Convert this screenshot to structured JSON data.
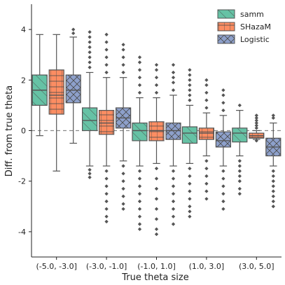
{
  "chart_data": {
    "type": "box",
    "xlabel": "True theta size",
    "ylabel": "Diff. from true theta",
    "categories": [
      "(-5.0, -3.0]",
      "(-3.0, -1.0]",
      "(-1.0, 1.0]",
      "(1.0, 3.0]",
      "(3.0, 5.0]"
    ],
    "ylim": [
      -5,
      5
    ],
    "yticks": [
      -4,
      -2,
      0,
      2,
      4
    ],
    "reference_line": 0,
    "legend": {
      "position": "top-right"
    },
    "colors": {
      "axis": "#222222",
      "median": "#555555",
      "whisker": "#555555",
      "reference": "#8a8a8a"
    },
    "series": [
      {
        "name": "samm",
        "color": "#66c2a5",
        "boxes": [
          {
            "whislo": -0.2,
            "q1": 1.0,
            "med": 1.6,
            "q3": 2.2,
            "whishi": 3.8,
            "outliers_low": [],
            "outliers_high": []
          },
          {
            "whislo": -1.4,
            "q1": 0.0,
            "med": 0.4,
            "q3": 0.9,
            "whishi": 2.3,
            "outliers_low": [
              -1.55,
              -1.7,
              -1.85
            ],
            "outliers_high": [
              2.5,
              2.7,
              2.9,
              3.1,
              3.3,
              3.5,
              3.7,
              3.9
            ]
          },
          {
            "whislo": -1.4,
            "q1": -0.4,
            "med": 0.0,
            "q3": 0.3,
            "whishi": 1.3,
            "outliers_low": [
              -1.6,
              -1.9,
              -2.2,
              -2.5,
              -2.8,
              -3.1,
              -3.4,
              -3.7,
              -3.9
            ],
            "outliers_high": [
              1.5,
              1.8,
              2.1,
              2.4,
              2.7,
              2.9
            ]
          },
          {
            "whislo": -1.3,
            "q1": -0.5,
            "med": -0.1,
            "q3": 0.15,
            "whishi": 1.0,
            "outliers_low": [
              -1.5,
              -1.8,
              -2.1,
              -2.4,
              -2.7,
              -3.0,
              -3.2,
              -3.4
            ],
            "outliers_high": [
              1.2,
              1.4,
              1.6,
              1.8,
              2.0,
              2.2,
              2.4
            ]
          },
          {
            "whislo": -1.0,
            "q1": -0.45,
            "med": -0.1,
            "q3": 0.1,
            "whishi": 0.8,
            "outliers_low": [
              -1.2,
              -1.4,
              -1.6,
              -1.8,
              -2.0,
              -2.3,
              -2.5
            ],
            "outliers_high": [
              1.0
            ]
          }
        ]
      },
      {
        "name": "SHazaM",
        "color": "#fc8d62",
        "boxes": [
          {
            "whislo": -1.6,
            "q1": 0.65,
            "med": 1.4,
            "q3": 2.4,
            "whishi": 3.8,
            "outliers_low": [],
            "outliers_high": []
          },
          {
            "whislo": -1.4,
            "q1": -0.15,
            "med": 0.3,
            "q3": 0.8,
            "whishi": 2.1,
            "outliers_low": [
              -1.6,
              -1.9,
              -2.2,
              -2.5,
              -2.8,
              -3.1,
              -3.4,
              -3.6
            ],
            "outliers_high": [
              2.3,
              2.6,
              2.9,
              3.2,
              3.5,
              3.8
            ]
          },
          {
            "whislo": -1.3,
            "q1": -0.4,
            "med": 0.0,
            "q3": 0.35,
            "whishi": 1.3,
            "outliers_low": [
              -1.5,
              -1.9,
              -2.3,
              -2.7,
              -3.1,
              -3.5,
              -3.9,
              -4.1
            ],
            "outliers_high": [
              1.5,
              1.8,
              2.1,
              2.4,
              2.6
            ]
          },
          {
            "whislo": -1.0,
            "q1": -0.35,
            "med": -0.1,
            "q3": 0.1,
            "whishi": 0.7,
            "outliers_low": [
              -1.2,
              -1.5,
              -1.8,
              -2.1,
              -2.4,
              -2.7
            ],
            "outliers_high": [
              0.9,
              1.2,
              1.5,
              1.8,
              2.0
            ]
          },
          {
            "whislo": -0.35,
            "q1": -0.3,
            "med": -0.2,
            "q3": -0.1,
            "whishi": 0.0,
            "outliers_low": [
              -0.4
            ],
            "outliers_high": [
              0.1,
              0.2,
              0.3,
              0.4,
              0.5,
              0.6
            ]
          }
        ]
      },
      {
        "name": "Logistic",
        "color": "#8da0cb",
        "boxes": [
          {
            "whislo": -0.5,
            "q1": 1.1,
            "med": 1.6,
            "q3": 2.2,
            "whishi": 3.7,
            "outliers_low": [],
            "outliers_high": [
              3.85,
              4.0
            ]
          },
          {
            "whislo": -1.2,
            "q1": 0.1,
            "med": 0.5,
            "q3": 0.9,
            "whishi": 2.1,
            "outliers_low": [
              -1.4,
              -1.7,
              -2.0,
              -2.3,
              -2.6,
              -2.9,
              -3.1
            ],
            "outliers_high": [
              2.3,
              2.6,
              2.9,
              3.2,
              3.4
            ]
          },
          {
            "whislo": -1.4,
            "q1": -0.35,
            "med": 0.0,
            "q3": 0.3,
            "whishi": 1.4,
            "outliers_low": [
              -1.6,
              -1.9,
              -2.2,
              -2.5,
              -2.8,
              -3.1,
              -3.4,
              -3.7
            ],
            "outliers_high": [
              1.6,
              1.9,
              2.1,
              2.3,
              2.6
            ]
          },
          {
            "whislo": -1.4,
            "q1": -0.65,
            "med": -0.4,
            "q3": -0.05,
            "whishi": 0.6,
            "outliers_low": [
              -1.6,
              -1.9,
              -2.2,
              -2.5,
              -2.8,
              -3.1
            ],
            "outliers_high": [
              0.8,
              1.1,
              1.4,
              1.6
            ]
          },
          {
            "whislo": -1.4,
            "q1": -1.0,
            "med": -0.65,
            "q3": -0.3,
            "whishi": 0.3,
            "outliers_low": [
              -1.6,
              -1.8,
              -2.0,
              -2.2,
              -2.4,
              -2.6,
              -2.8,
              -3.0
            ],
            "outliers_high": [
              0.5,
              0.6
            ]
          }
        ]
      }
    ]
  }
}
